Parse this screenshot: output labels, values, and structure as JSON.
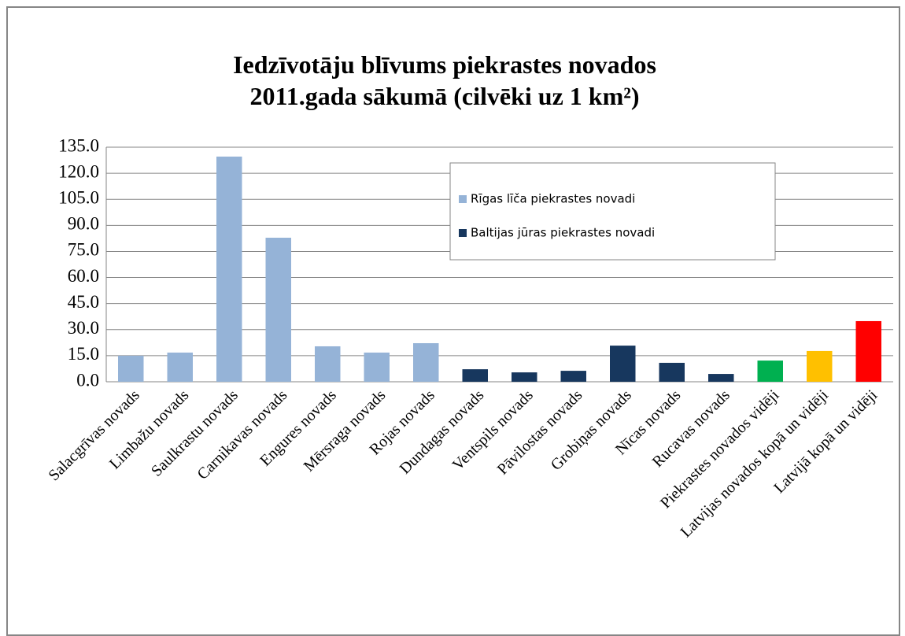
{
  "chart_data": {
    "type": "bar",
    "title": "Iedzīvotāju blīvums piekrastes novados  2011.gada sākumā (cilvēki uz 1 km²)",
    "categories": [
      "Salacgrīvas novads",
      "Limbažu novads",
      "Saulkrastu novads",
      "Carnikavas novads",
      "Engures novads",
      "Mērsraga novads",
      "Rojas novads",
      "Dundagas novads",
      "Ventspils novads",
      "Pāvilostas novads",
      "Grobiņas novads",
      "Nīcas novads",
      "Rucavas novads",
      "Piekrastes novados vidēji",
      "Latvijas novados kopā un  vidēji",
      "Latvijā kopā un vidēji"
    ],
    "values": [
      15.0,
      16.8,
      129.6,
      82.9,
      20.4,
      16.8,
      22.2,
      7.2,
      5.4,
      6.3,
      20.8,
      10.9,
      4.5,
      12.2,
      17.7,
      34.9
    ],
    "colors": [
      "#95b3d7",
      "#95b3d7",
      "#95b3d7",
      "#95b3d7",
      "#95b3d7",
      "#95b3d7",
      "#95b3d7",
      "#17375e",
      "#17375e",
      "#17375e",
      "#17375e",
      "#17375e",
      "#17375e",
      "#00b050",
      "#ffc000",
      "#ff0000"
    ],
    "legend": [
      {
        "name": "Rīgas līča piekrastes novadi",
        "color": "#95b3d7"
      },
      {
        "name": "Baltijas jūras piekrastes novadi",
        "color": "#17375e"
      }
    ],
    "ylim": [
      0,
      135
    ],
    "yticks": [
      {
        "value": 0,
        "label": "0.0"
      },
      {
        "value": 15,
        "label": "15.0"
      },
      {
        "value": 30,
        "label": "30.0"
      },
      {
        "value": 45,
        "label": "45.0"
      },
      {
        "value": 60,
        "label": "60.0"
      },
      {
        "value": 75,
        "label": "75.0"
      },
      {
        "value": 90,
        "label": "90.0"
      },
      {
        "value": 105,
        "label": "105.0"
      },
      {
        "value": 120,
        "label": "120.0"
      },
      {
        "value": 135,
        "label": "135.0"
      }
    ],
    "grid": true
  }
}
